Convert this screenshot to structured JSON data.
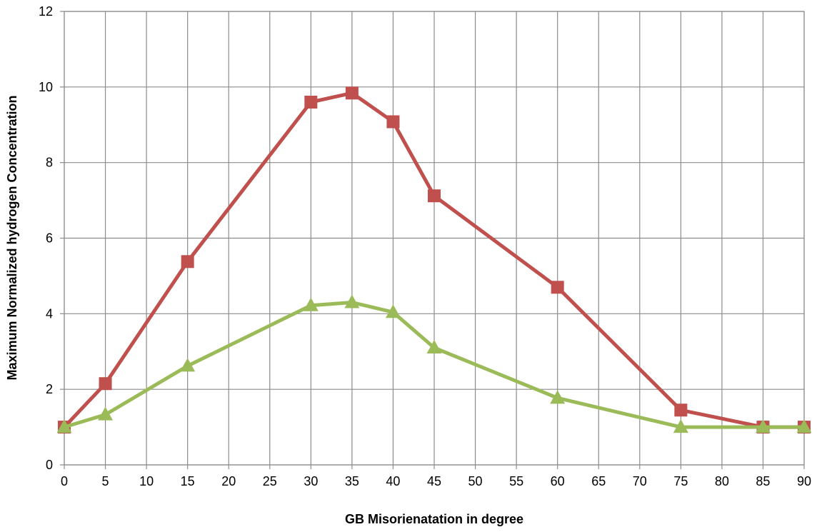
{
  "chart_data": {
    "type": "line",
    "title": "",
    "xlabel": "GB Misorienatation in degree",
    "ylabel": "Maximum Normalized hydrogen Concentration",
    "xlim": [
      0,
      90
    ],
    "ylim": [
      0,
      12
    ],
    "x_ticks": [
      "0",
      "5",
      "10",
      "15",
      "20",
      "25",
      "30",
      "35",
      "40",
      "45",
      "50",
      "55",
      "60",
      "65",
      "70",
      "75",
      "80",
      "85",
      "90"
    ],
    "y_ticks": [
      "0",
      "2",
      "4",
      "6",
      "8",
      "10",
      "12"
    ],
    "grid": true,
    "legend": "none",
    "series": [
      {
        "marker": "square",
        "color": "#c0504d",
        "x": [
          0,
          5,
          15,
          30,
          35,
          40,
          45,
          60,
          75,
          85,
          90
        ],
        "y": [
          1.0,
          2.15,
          5.38,
          9.6,
          9.84,
          9.08,
          7.12,
          4.7,
          1.45,
          1.0,
          1.0
        ]
      },
      {
        "marker": "triangle",
        "color": "#9bbb59",
        "x": [
          0,
          5,
          15,
          30,
          35,
          40,
          45,
          60,
          75,
          85,
          90
        ],
        "y": [
          1.0,
          1.33,
          2.62,
          4.22,
          4.3,
          4.04,
          3.1,
          1.77,
          1.0,
          1.0,
          1.0
        ]
      }
    ]
  }
}
